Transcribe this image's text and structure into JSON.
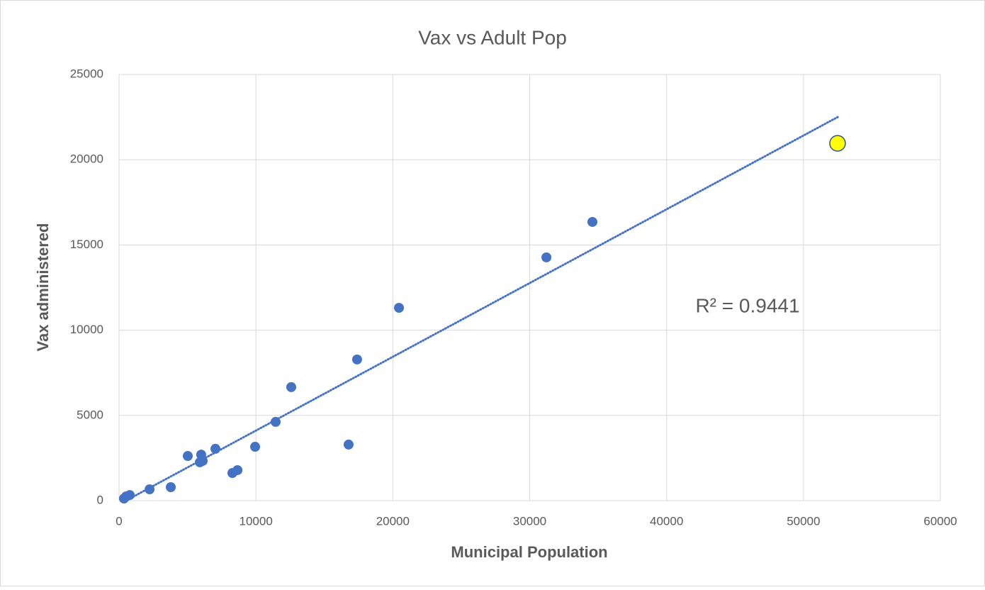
{
  "chart_data": {
    "type": "scatter",
    "title": "Vax vs Adult Pop",
    "x_label": "Municipal Population",
    "y_label": "Vax administered",
    "x": [
      360,
      520,
      780,
      2230,
      3780,
      5020,
      5900,
      6000,
      6110,
      7040,
      8280,
      8650,
      9940,
      11440,
      12580,
      16770,
      17390,
      20450,
      31220,
      34580,
      52490
    ],
    "values": [
      125,
      250,
      330,
      665,
      790,
      2620,
      2250,
      2700,
      2330,
      3040,
      1620,
      1790,
      3160,
      4620,
      6660,
      3290,
      8280,
      11310,
      14270,
      16350,
      20960
    ],
    "color": "#4472c4",
    "highlight": {
      "index": 20,
      "color": "#ffff00"
    },
    "trendline": {
      "x": [
        500,
        52500
      ],
      "y": [
        0,
        22500
      ],
      "color": "#4472c4"
    },
    "annotation": "R² = 0.9441",
    "xlim": [
      0,
      60000
    ],
    "xticks": [
      0,
      10000,
      20000,
      30000,
      40000,
      50000,
      60000
    ],
    "ylim": [
      0,
      25000
    ],
    "yticks": [
      0,
      5000,
      10000,
      15000,
      20000,
      25000
    ],
    "grid": true
  }
}
